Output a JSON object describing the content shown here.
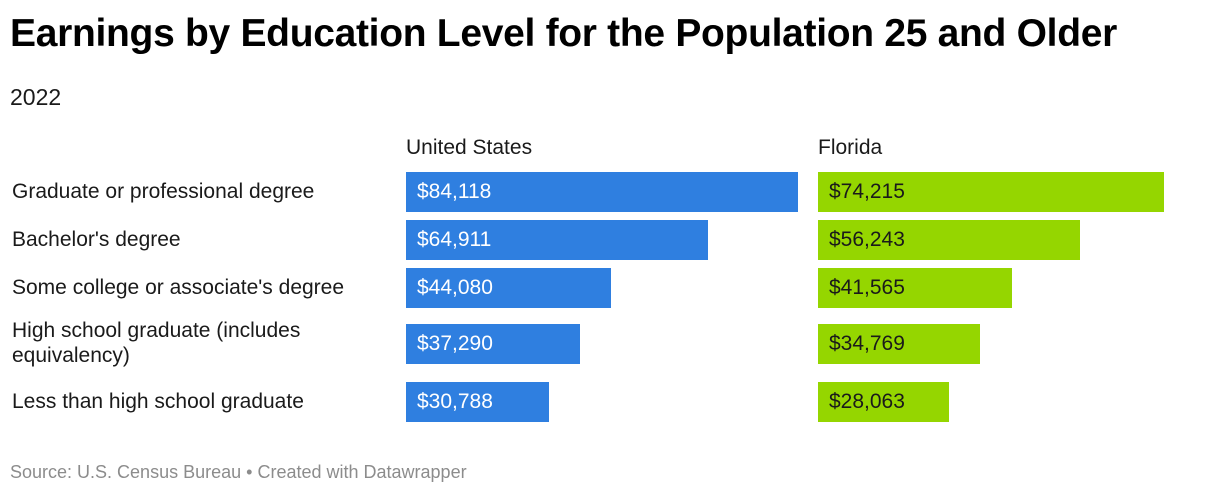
{
  "title": "Earnings by Education Level for the Population 25 and Older",
  "subtitle": "2022",
  "footer": {
    "source": "Source: U.S. Census Bureau",
    "separator": "•",
    "credit": "Created with Datawrapper"
  },
  "colors": {
    "united_states": "#2f7fe0",
    "florida": "#95d600"
  },
  "chart_data": {
    "type": "bar",
    "orientation": "horizontal",
    "categories": [
      "Graduate or professional degree",
      "Bachelor's degree",
      "Some college or associate's degree",
      "High school graduate (includes equivalency)",
      "Less than high school graduate"
    ],
    "category_lines": [
      [
        "Graduate or professional degree"
      ],
      [
        "Bachelor's degree"
      ],
      [
        "Some college or associate's degree"
      ],
      [
        "High school graduate (includes",
        "equivalency)"
      ],
      [
        "Less than high school graduate"
      ]
    ],
    "series": [
      {
        "name": "United States",
        "values": [
          84118,
          64911,
          44080,
          37290,
          30788
        ],
        "labels": [
          "$84,118",
          "$64,911",
          "$44,080",
          "$37,290",
          "$30,788"
        ]
      },
      {
        "name": "Florida",
        "values": [
          74215,
          56243,
          41565,
          34769,
          28063
        ],
        "labels": [
          "$74,215",
          "$56,243",
          "$41,565",
          "$34,769",
          "$28,063"
        ]
      }
    ],
    "xlim": [
      0,
      84118
    ],
    "grid": false,
    "legend": "none"
  }
}
